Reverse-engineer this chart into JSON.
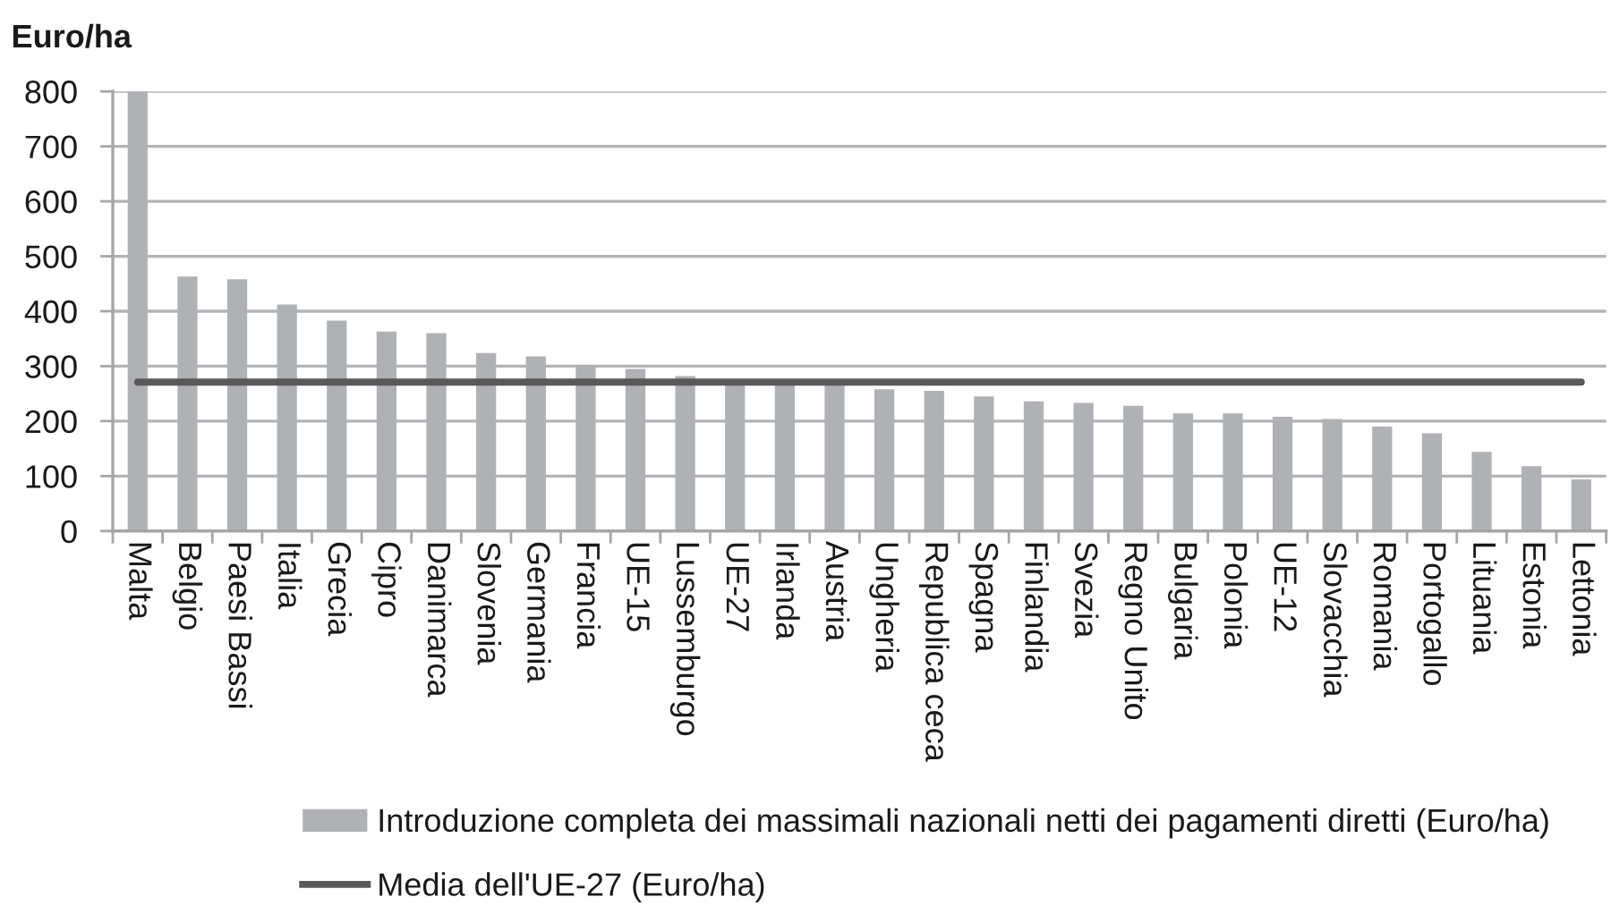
{
  "chart_data": {
    "type": "bar",
    "ylabel": "Euro/ha",
    "categories": [
      "Malta",
      "Belgio",
      "Paesi Bassi",
      "Italia",
      "Grecia",
      "Cipro",
      "Danimarca",
      "Slovenia",
      "Germania",
      "Francia",
      "UE-15",
      "Lussemburgo",
      "UE-27",
      "Irlanda",
      "Austria",
      "Ungheria",
      "Republica ceca",
      "Spagna",
      "Finlandia",
      "Svezia",
      "Regno Unito",
      "Bulgaria",
      "Polonia",
      "UE-12",
      "Slovacchia",
      "Romania",
      "Portogallo",
      "Lituania",
      "Estonia",
      "Lettonia"
    ],
    "series": [
      {
        "name": "Introduzione completa dei massimali nazionali netti dei pagamenti diretti (Euro/ha)",
        "color": "#b0b1b4",
        "values": [
          800,
          463,
          458,
          412,
          383,
          363,
          360,
          324,
          318,
          302,
          295,
          282,
          273,
          274,
          272,
          258,
          255,
          245,
          236,
          233,
          228,
          214,
          214,
          208,
          204,
          190,
          178,
          144,
          118,
          94
        ]
      },
      {
        "name": "Media dell'UE-27 (Euro/ha)",
        "type": "line",
        "color": "#595959",
        "values": [
          271,
          271,
          271,
          271,
          271,
          271,
          271,
          271,
          271,
          271,
          271,
          271,
          271,
          271,
          271,
          271,
          271,
          271,
          271,
          271,
          271,
          271,
          271,
          271,
          271,
          271,
          271,
          271,
          271,
          271
        ]
      }
    ],
    "ylim": [
      0,
      800
    ],
    "yticks": [
      0,
      100,
      200,
      300,
      400,
      500,
      600,
      700,
      800
    ],
    "grid": "y",
    "legend": "bottom"
  }
}
